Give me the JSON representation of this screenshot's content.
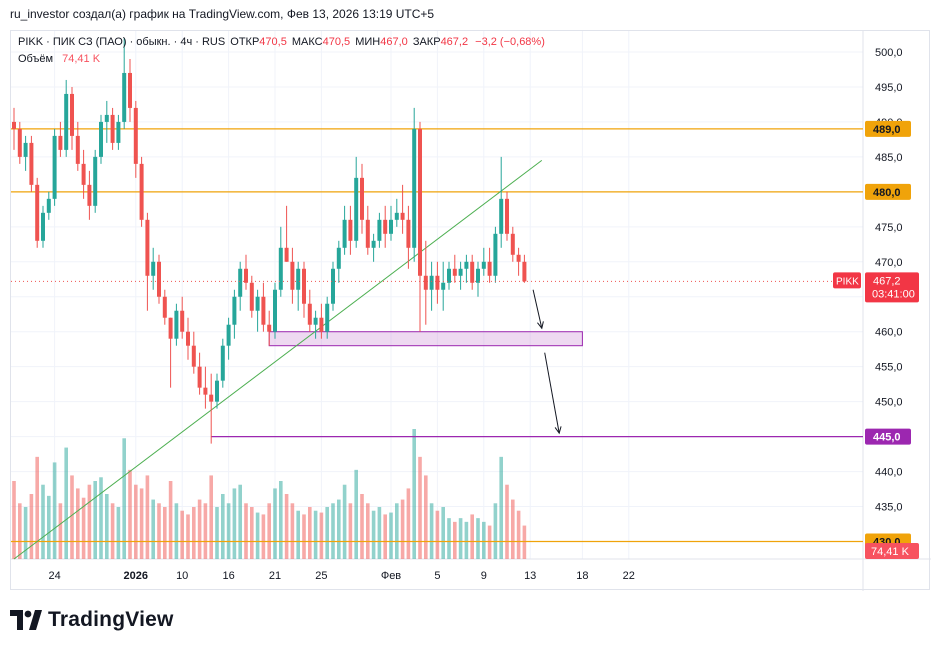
{
  "header": {
    "attribution": "ru_investor создал(а) график на TradingView.com, Фев 13, 2026 13:19 UTC+5"
  },
  "legend": {
    "symbol": "PIKK · ПИК СЗ (ПАО) · обыкн. · 4ч · RUS",
    "open_label": "ОТКР",
    "open": "470,5",
    "high_label": "МАКС",
    "high": "470,5",
    "low_label": "МИН",
    "low": "467,0",
    "close_label": "ЗАКР",
    "close": "467,2",
    "change": "−3,2 (−0,68%)",
    "volume_label": "Объём",
    "volume": "74,41 K"
  },
  "footer": {
    "logo_text": "TradingView"
  },
  "colors": {
    "up": "#26a69a",
    "down": "#ef5350",
    "level": "#f0a30a",
    "purple": "#9c27b0",
    "trend": "#4caf50"
  },
  "chart_data": {
    "type": "candlestick",
    "symbol": "PIKK",
    "timeframe": "4ч",
    "y_ticks": [
      "500,0",
      "495,0",
      "490,0",
      "485,0",
      "480,0",
      "475,0",
      "470,0",
      "465,0",
      "460,0",
      "455,0",
      "450,0",
      "445,0",
      "440,0",
      "435,0",
      "430,0"
    ],
    "y_tick_values": [
      500,
      495,
      490,
      485,
      480,
      475,
      470,
      465,
      460,
      455,
      450,
      445,
      440,
      435,
      430
    ],
    "ylim": [
      427.5,
      503
    ],
    "x_ticks": [
      {
        "label": "24",
        "bar": 7
      },
      {
        "label": "2026",
        "bar": 21
      },
      {
        "label": "10",
        "bar": 29
      },
      {
        "label": "16",
        "bar": 37
      },
      {
        "label": "21",
        "bar": 45
      },
      {
        "label": "25",
        "bar": 53
      },
      {
        "label": "Фев",
        "bar": 65
      },
      {
        "label": "5",
        "bar": 73
      },
      {
        "label": "9",
        "bar": 81
      },
      {
        "label": "13",
        "bar": 89
      },
      {
        "label": "18",
        "bar": 98
      },
      {
        "label": "22",
        "bar": 106
      }
    ],
    "x_domain": [
      0,
      116
    ],
    "last_price_label": "PIKK",
    "last_price": "467,2",
    "countdown": "03:41:00",
    "volume_badge": "74,41 K",
    "levels": [
      {
        "value": 489.0,
        "label": "489,0",
        "color": "#f0a30a"
      },
      {
        "value": 480.0,
        "label": "480,0",
        "color": "#f0a30a"
      },
      {
        "value": 430.0,
        "label": "430,0",
        "color": "#f0a30a"
      },
      {
        "value": 445.0,
        "label": "445,0",
        "color": "#9c27b0"
      }
    ],
    "zone": {
      "x_from": 44,
      "x_to": 98,
      "y_from": 458,
      "y_to": 460
    },
    "trendline": {
      "x1": 0,
      "y1": 427.5,
      "x2": 91,
      "y2": 484.5
    },
    "arrows": [
      {
        "x1": 89.5,
        "y1": 466,
        "x2": 91,
        "y2": 460.5
      },
      {
        "x1": 91.5,
        "y1": 457,
        "x2": 94,
        "y2": 445.5
      }
    ],
    "candles": [
      [
        490,
        492,
        486,
        489,
        42
      ],
      [
        489,
        490,
        484,
        485,
        30
      ],
      [
        485,
        488,
        483,
        487,
        28
      ],
      [
        487,
        488,
        480,
        481,
        35
      ],
      [
        481,
        482,
        472,
        473,
        55
      ],
      [
        473,
        478,
        472,
        477,
        40
      ],
      [
        477,
        480,
        476,
        479,
        34
      ],
      [
        479,
        489,
        478,
        488,
        52
      ],
      [
        488,
        490,
        485,
        486,
        30
      ],
      [
        486,
        496,
        485,
        494,
        60
      ],
      [
        494,
        495,
        486,
        488,
        45
      ],
      [
        488,
        490,
        483,
        484,
        38
      ],
      [
        484,
        486,
        479,
        481,
        33
      ],
      [
        481,
        483,
        476,
        478,
        40
      ],
      [
        478,
        486,
        477,
        485,
        42
      ],
      [
        485,
        491,
        484,
        490,
        44
      ],
      [
        490,
        493,
        487,
        491,
        35
      ],
      [
        491,
        492,
        486,
        487,
        30
      ],
      [
        487,
        491,
        486,
        490,
        28
      ],
      [
        490,
        502,
        489,
        497,
        65
      ],
      [
        497,
        499,
        490,
        492,
        48
      ],
      [
        492,
        493,
        482,
        484,
        40
      ],
      [
        484,
        485,
        475,
        476,
        38
      ],
      [
        476,
        477,
        463,
        468,
        45
      ],
      [
        468,
        472,
        466,
        470,
        32
      ],
      [
        470,
        471,
        464,
        465,
        30
      ],
      [
        465,
        466,
        461,
        462,
        28
      ],
      [
        462,
        462,
        452,
        459,
        42
      ],
      [
        459,
        464,
        458,
        463,
        30
      ],
      [
        463,
        465,
        459,
        460,
        26
      ],
      [
        460,
        462,
        456,
        458,
        24
      ],
      [
        458,
        460,
        454,
        455,
        28
      ],
      [
        455,
        457,
        451,
        452,
        32
      ],
      [
        452,
        455,
        449,
        451,
        30
      ],
      [
        451,
        454,
        444,
        450,
        45
      ],
      [
        450,
        454,
        449,
        453,
        28
      ],
      [
        453,
        459,
        452,
        458,
        35
      ],
      [
        458,
        462,
        456,
        461,
        30
      ],
      [
        461,
        466,
        459,
        465,
        38
      ],
      [
        465,
        470,
        463,
        469,
        40
      ],
      [
        469,
        471,
        466,
        467,
        30
      ],
      [
        467,
        468,
        462,
        463,
        28
      ],
      [
        463,
        466,
        460,
        465,
        25
      ],
      [
        465,
        467,
        460,
        461,
        24
      ],
      [
        461,
        463,
        458,
        460,
        30
      ],
      [
        460,
        467,
        459,
        466,
        38
      ],
      [
        466,
        475,
        465,
        472,
        42
      ],
      [
        472,
        478,
        470,
        470,
        35
      ],
      [
        470,
        472,
        464,
        466,
        30
      ],
      [
        466,
        470,
        463,
        469,
        26
      ],
      [
        469,
        470,
        462,
        464,
        24
      ],
      [
        464,
        466,
        460,
        461,
        28
      ],
      [
        461,
        463,
        459,
        462,
        26
      ],
      [
        462,
        464,
        459,
        460,
        25
      ],
      [
        460,
        465,
        459,
        464,
        28
      ],
      [
        464,
        470,
        463,
        469,
        30
      ],
      [
        469,
        473,
        467,
        472,
        32
      ],
      [
        472,
        478,
        471,
        476,
        40
      ],
      [
        476,
        478,
        471,
        473,
        30
      ],
      [
        473,
        485,
        472,
        482,
        48
      ],
      [
        482,
        484,
        474,
        476,
        35
      ],
      [
        476,
        478,
        471,
        472,
        30
      ],
      [
        472,
        474,
        470,
        473,
        26
      ],
      [
        473,
        477,
        472,
        476,
        28
      ],
      [
        476,
        478,
        472,
        474,
        24
      ],
      [
        474,
        478,
        473,
        476,
        25
      ],
      [
        476,
        479,
        475,
        477,
        30
      ],
      [
        477,
        481,
        474,
        476,
        32
      ],
      [
        476,
        478,
        469,
        472,
        38
      ],
      [
        472,
        492,
        470,
        489,
        70
      ],
      [
        489,
        490,
        460,
        468,
        55
      ],
      [
        468,
        473,
        461,
        466,
        45
      ],
      [
        466,
        470,
        463,
        468,
        30
      ],
      [
        468,
        470,
        464,
        466,
        26
      ],
      [
        466,
        470,
        463,
        467,
        28
      ],
      [
        467,
        470,
        466,
        469,
        22
      ],
      [
        469,
        471,
        467,
        468,
        20
      ],
      [
        468,
        470,
        466,
        469,
        22
      ],
      [
        469,
        471,
        467,
        470,
        20
      ],
      [
        470,
        471,
        466,
        467,
        24
      ],
      [
        467,
        470,
        465,
        469,
        22
      ],
      [
        469,
        472,
        468,
        470,
        20
      ],
      [
        470,
        472,
        467,
        468,
        18
      ],
      [
        468,
        475,
        467,
        474,
        30
      ],
      [
        474,
        485,
        472,
        479,
        55
      ],
      [
        479,
        480,
        473,
        474,
        40
      ],
      [
        474,
        475,
        470,
        471,
        32
      ],
      [
        471,
        472,
        468,
        470,
        26
      ],
      [
        470,
        471,
        467,
        467.2,
        18
      ]
    ]
  }
}
